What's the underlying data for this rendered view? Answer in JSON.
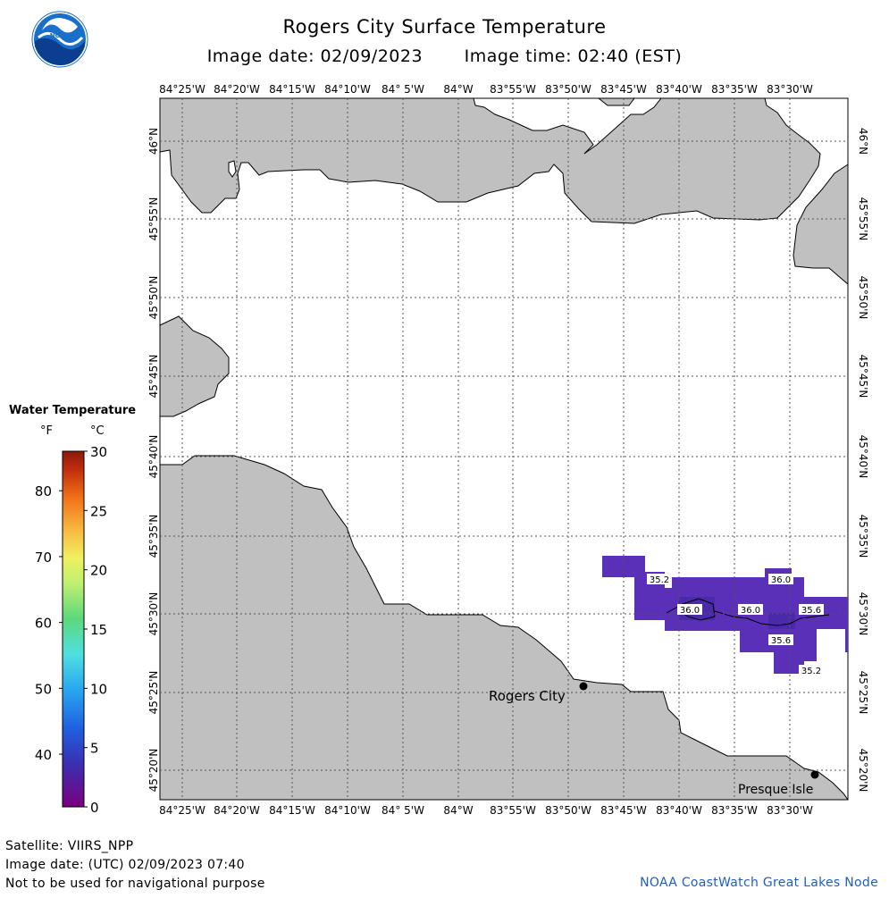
{
  "title": "Rogers City Surface Temperature",
  "image_date": "Image date: 02/09/2023",
  "image_time": "Image time: 02:40 (EST)",
  "logo_text": "NOAA",
  "footer": {
    "satellite": "Satellite: VIIRS_NPP",
    "utc_date": "Image date: (UTC) 02/09/2023  07:40",
    "warning": "Not to be used for navigational purpose",
    "credit": "NOAA CoastWatch Great Lakes Node"
  },
  "legend": {
    "title": "Water Temperature",
    "unit_f": "°F",
    "unit_c": "°C",
    "f_ticks": [
      "40",
      "50",
      "60",
      "70",
      "80"
    ],
    "c_ticks": [
      "0",
      "5",
      "10",
      "15",
      "20",
      "25",
      "30"
    ]
  },
  "map": {
    "lon_labels": [
      "84°25'W",
      "84°20'W",
      "84°15'W",
      "84°10'W",
      "84° 5'W",
      "84°W",
      "83°55'W",
      "83°50'W",
      "83°45'W",
      "83°40'W",
      "83°35'W",
      "83°30'W"
    ],
    "lat_labels": [
      "46°N",
      "45°55'N",
      "45°50'N",
      "45°45'N",
      "45°40'N",
      "45°35'N",
      "45°30'N",
      "45°25'N",
      "45°20'N"
    ],
    "places": [
      {
        "name": "Rogers City"
      },
      {
        "name": "Presque Isle"
      }
    ],
    "contour_labels": [
      "35.2",
      "36.0",
      "36.0",
      "36.0",
      "35.6",
      "35.6",
      "35.2"
    ],
    "colors": {
      "land": "#c0c0c0",
      "water_data": "#5a30b8",
      "water_data_dark": "#4a2aa8",
      "grid": "#555555"
    }
  }
}
